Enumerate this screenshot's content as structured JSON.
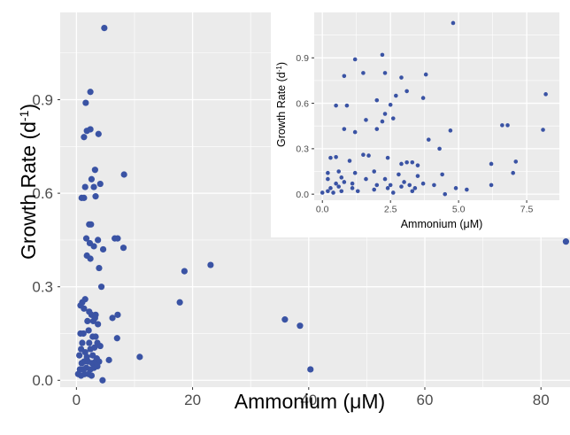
{
  "chart_data": [
    {
      "type": "scatter",
      "panel": "main",
      "xlabel": "Ammonium (μM)",
      "ylabel_main": "Growth Rate (d",
      "ylabel_sup": "-1",
      "ylabel_close": ")",
      "xlim": [
        -2.8,
        85
      ],
      "ylim": [
        -0.022,
        1.18
      ],
      "xticks": [
        {
          "value": 0,
          "label": "0"
        },
        {
          "value": 20,
          "label": "20"
        },
        {
          "value": 40,
          "label": "40"
        },
        {
          "value": 60,
          "label": "60"
        },
        {
          "value": 80,
          "label": "80"
        }
      ],
      "yticks": [
        {
          "value": 0.0,
          "label": "0.0"
        },
        {
          "value": 0.3,
          "label": "0.3"
        },
        {
          "value": 0.6,
          "label": "0.6"
        },
        {
          "value": 0.9,
          "label": "0.9"
        }
      ],
      "grid": true,
      "point_color": "#3a53a4",
      "points": [
        [
          4.8,
          1.13
        ],
        [
          2.4,
          0.925
        ],
        [
          1.6,
          0.89
        ],
        [
          1.3,
          0.78
        ],
        [
          1.8,
          0.8
        ],
        [
          2.4,
          0.805
        ],
        [
          3.8,
          0.79
        ],
        [
          3.2,
          0.675
        ],
        [
          2.6,
          0.645
        ],
        [
          1.5,
          0.62
        ],
        [
          3.0,
          0.62
        ],
        [
          4.1,
          0.63
        ],
        [
          8.2,
          0.66
        ],
        [
          0.9,
          0.585
        ],
        [
          1.3,
          0.585
        ],
        [
          3.3,
          0.59
        ],
        [
          2.2,
          0.5
        ],
        [
          2.5,
          0.5
        ],
        [
          1.7,
          0.455
        ],
        [
          2.3,
          0.44
        ],
        [
          3.7,
          0.45
        ],
        [
          6.6,
          0.455
        ],
        [
          7.1,
          0.455
        ],
        [
          8.1,
          0.425
        ],
        [
          1.8,
          0.4
        ],
        [
          2.4,
          0.39
        ],
        [
          3.0,
          0.43
        ],
        [
          4.6,
          0.42
        ],
        [
          3.9,
          0.36
        ],
        [
          4.3,
          0.3
        ],
        [
          18.6,
          0.35
        ],
        [
          23.1,
          0.37
        ],
        [
          84.3,
          0.445
        ],
        [
          17.8,
          0.25
        ],
        [
          1.5,
          0.26
        ],
        [
          1.0,
          0.25
        ],
        [
          1.3,
          0.23
        ],
        [
          0.7,
          0.24
        ],
        [
          2.2,
          0.22
        ],
        [
          2.6,
          0.21
        ],
        [
          3.3,
          0.21
        ],
        [
          7.1,
          0.21
        ],
        [
          1.9,
          0.19
        ],
        [
          2.9,
          0.19
        ],
        [
          3.2,
          0.2
        ],
        [
          3.7,
          0.18
        ],
        [
          6.2,
          0.2
        ],
        [
          0.7,
          0.15
        ],
        [
          1.2,
          0.15
        ],
        [
          2.1,
          0.16
        ],
        [
          2.8,
          0.14
        ],
        [
          3.3,
          0.14
        ],
        [
          1.0,
          0.12
        ],
        [
          2.2,
          0.12
        ],
        [
          3.6,
          0.12
        ],
        [
          7.0,
          0.135
        ],
        [
          0.8,
          0.1
        ],
        [
          1.5,
          0.09
        ],
        [
          2.4,
          0.1
        ],
        [
          3.1,
          0.105
        ],
        [
          4.1,
          0.11
        ],
        [
          0.5,
          0.08
        ],
        [
          1.8,
          0.075
        ],
        [
          2.8,
          0.08
        ],
        [
          3.5,
          0.07
        ],
        [
          10.9,
          0.075
        ],
        [
          0.9,
          0.055
        ],
        [
          1.3,
          0.06
        ],
        [
          2.0,
          0.06
        ],
        [
          2.7,
          0.055
        ],
        [
          3.3,
          0.06
        ],
        [
          3.9,
          0.06
        ],
        [
          5.6,
          0.065
        ],
        [
          0.6,
          0.035
        ],
        [
          1.2,
          0.035
        ],
        [
          1.7,
          0.04
        ],
        [
          2.4,
          0.035
        ],
        [
          3.0,
          0.04
        ],
        [
          3.6,
          0.045
        ],
        [
          0.3,
          0.02
        ],
        [
          0.8,
          0.015
        ],
        [
          1.4,
          0.02
        ],
        [
          2.1,
          0.02
        ],
        [
          2.6,
          0.015
        ],
        [
          4.5,
          0.0
        ],
        [
          35.9,
          0.195
        ],
        [
          38.5,
          0.175
        ],
        [
          40.3,
          0.035
        ]
      ]
    },
    {
      "type": "scatter",
      "panel": "inset",
      "xlabel": "Ammonium (μM)",
      "ylabel_main": "Growth Rate (d",
      "ylabel_sup": "-1",
      "ylabel_close": ")",
      "xlim": [
        -0.3,
        8.7
      ],
      "ylim": [
        -0.04,
        1.2
      ],
      "xticks": [
        {
          "value": 0,
          "label": "0.0"
        },
        {
          "value": 2.5,
          "label": "2.5"
        },
        {
          "value": 5,
          "label": "5.0"
        },
        {
          "value": 7.5,
          "label": "7.5"
        }
      ],
      "yticks": [
        {
          "value": 0.0,
          "label": "0.0"
        },
        {
          "value": 0.3,
          "label": "0.3"
        },
        {
          "value": 0.6,
          "label": "0.6"
        },
        {
          "value": 0.9,
          "label": "0.9"
        }
      ],
      "grid": true,
      "point_color": "#3a53a4",
      "points": [
        [
          4.8,
          1.13
        ],
        [
          2.2,
          0.92
        ],
        [
          1.2,
          0.89
        ],
        [
          1.5,
          0.8
        ],
        [
          2.3,
          0.8
        ],
        [
          3.8,
          0.79
        ],
        [
          0.8,
          0.78
        ],
        [
          2.9,
          0.77
        ],
        [
          3.1,
          0.68
        ],
        [
          2.7,
          0.65
        ],
        [
          8.2,
          0.66
        ],
        [
          2.0,
          0.62
        ],
        [
          3.7,
          0.635
        ],
        [
          2.5,
          0.59
        ],
        [
          0.5,
          0.585
        ],
        [
          0.9,
          0.585
        ],
        [
          2.3,
          0.53
        ],
        [
          1.6,
          0.49
        ],
        [
          2.6,
          0.5
        ],
        [
          2.2,
          0.48
        ],
        [
          6.6,
          0.455
        ],
        [
          6.8,
          0.455
        ],
        [
          0.8,
          0.43
        ],
        [
          2.0,
          0.43
        ],
        [
          4.7,
          0.42
        ],
        [
          8.1,
          0.425
        ],
        [
          3.9,
          0.36
        ],
        [
          4.3,
          0.3
        ],
        [
          1.2,
          0.41
        ],
        [
          1.5,
          0.26
        ],
        [
          1.7,
          0.255
        ],
        [
          2.4,
          0.24
        ],
        [
          0.3,
          0.24
        ],
        [
          0.5,
          0.245
        ],
        [
          1.0,
          0.22
        ],
        [
          3.1,
          0.21
        ],
        [
          3.3,
          0.21
        ],
        [
          7.1,
          0.215
        ],
        [
          3.5,
          0.19
        ],
        [
          2.9,
          0.2
        ],
        [
          6.2,
          0.2
        ],
        [
          0.2,
          0.14
        ],
        [
          0.6,
          0.15
        ],
        [
          1.2,
          0.14
        ],
        [
          1.9,
          0.15
        ],
        [
          2.8,
          0.13
        ],
        [
          3.5,
          0.12
        ],
        [
          4.4,
          0.13
        ],
        [
          7.0,
          0.14
        ],
        [
          0.2,
          0.1
        ],
        [
          0.7,
          0.11
        ],
        [
          1.6,
          0.1
        ],
        [
          2.3,
          0.1
        ],
        [
          3.0,
          0.08
        ],
        [
          0.5,
          0.07
        ],
        [
          0.8,
          0.08
        ],
        [
          1.1,
          0.07
        ],
        [
          2.0,
          0.06
        ],
        [
          2.5,
          0.06
        ],
        [
          3.2,
          0.06
        ],
        [
          3.7,
          0.07
        ],
        [
          0.3,
          0.04
        ],
        [
          0.6,
          0.05
        ],
        [
          1.1,
          0.04
        ],
        [
          1.9,
          0.03
        ],
        [
          2.4,
          0.04
        ],
        [
          2.9,
          0.05
        ],
        [
          3.4,
          0.04
        ],
        [
          4.1,
          0.06
        ],
        [
          4.9,
          0.04
        ],
        [
          5.3,
          0.03
        ],
        [
          0.0,
          0.01
        ],
        [
          0.2,
          0.02
        ],
        [
          0.4,
          0.01
        ],
        [
          0.7,
          0.02
        ],
        [
          1.3,
          0.02
        ],
        [
          2.6,
          0.01
        ],
        [
          3.3,
          0.02
        ],
        [
          4.5,
          0.0
        ],
        [
          6.2,
          0.06
        ]
      ]
    }
  ]
}
